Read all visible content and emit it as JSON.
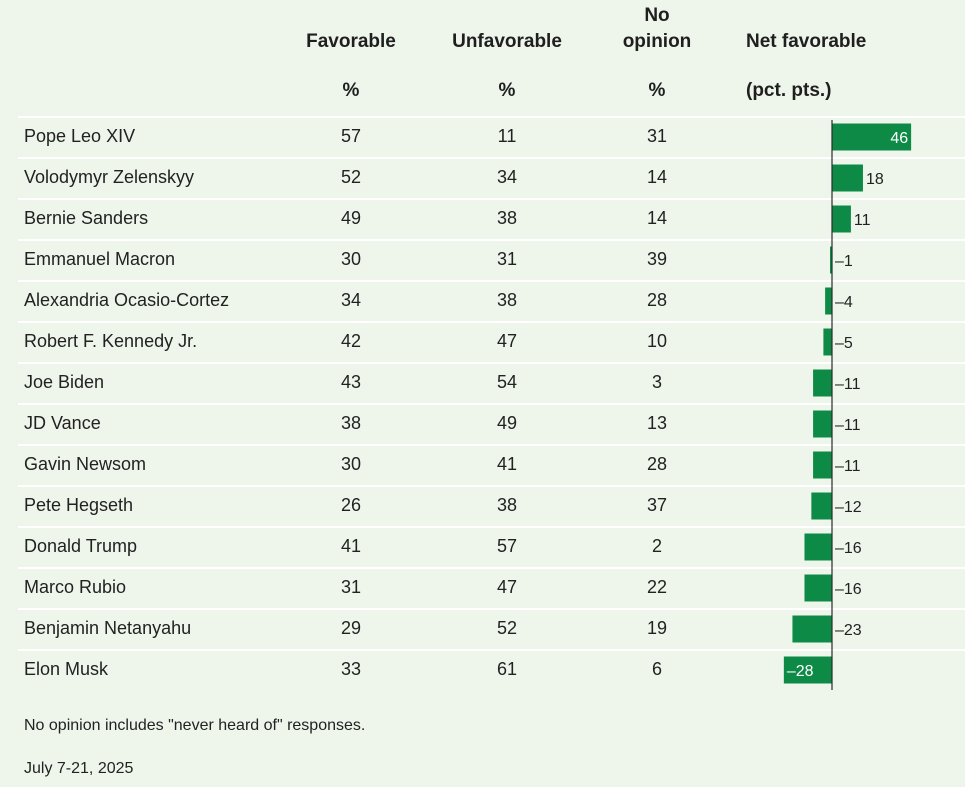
{
  "headers": {
    "favorable": "Favorable",
    "unfavorable": "Unfavorable",
    "no_opinion_line1": "No",
    "no_opinion_line2": "opinion",
    "net": "Net favorable",
    "pct": "%",
    "net_unit": "(pct. pts.)"
  },
  "rows": [
    {
      "name": "Pope Leo XIV",
      "favorable": "57",
      "unfavorable": "11",
      "no_opinion": "31"
    },
    {
      "name": "Volodymyr Zelenskyy",
      "favorable": "52",
      "unfavorable": "34",
      "no_opinion": "14"
    },
    {
      "name": "Bernie Sanders",
      "favorable": "49",
      "unfavorable": "38",
      "no_opinion": "14"
    },
    {
      "name": "Emmanuel Macron",
      "favorable": "30",
      "unfavorable": "31",
      "no_opinion": "39"
    },
    {
      "name": "Alexandria Ocasio-Cortez",
      "favorable": "34",
      "unfavorable": "38",
      "no_opinion": "28"
    },
    {
      "name": "Robert F. Kennedy Jr.",
      "favorable": "42",
      "unfavorable": "47",
      "no_opinion": "10"
    },
    {
      "name": "Joe Biden",
      "favorable": "43",
      "unfavorable": "54",
      "no_opinion": "3"
    },
    {
      "name": "JD Vance",
      "favorable": "38",
      "unfavorable": "49",
      "no_opinion": "13"
    },
    {
      "name": "Gavin Newsom",
      "favorable": "30",
      "unfavorable": "41",
      "no_opinion": "28"
    },
    {
      "name": "Pete Hegseth",
      "favorable": "26",
      "unfavorable": "38",
      "no_opinion": "37"
    },
    {
      "name": "Donald Trump",
      "favorable": "41",
      "unfavorable": "57",
      "no_opinion": "2"
    },
    {
      "name": "Marco Rubio",
      "favorable": "31",
      "unfavorable": "47",
      "no_opinion": "22"
    },
    {
      "name": "Benjamin Netanyahu",
      "favorable": "29",
      "unfavorable": "52",
      "no_opinion": "19"
    },
    {
      "name": "Elon Musk",
      "favorable": "33",
      "unfavorable": "61",
      "no_opinion": "6"
    }
  ],
  "chart_data": {
    "type": "bar",
    "orientation": "horizontal",
    "categories": [
      "Pope Leo XIV",
      "Volodymyr Zelenskyy",
      "Bernie Sanders",
      "Emmanuel Macron",
      "Alexandria Ocasio-Cortez",
      "Robert F. Kennedy Jr.",
      "Joe Biden",
      "JD Vance",
      "Gavin Newsom",
      "Pete Hegseth",
      "Donald Trump",
      "Marco Rubio",
      "Benjamin Netanyahu",
      "Elon Musk"
    ],
    "values": [
      46,
      18,
      11,
      -1,
      -4,
      -5,
      -11,
      -11,
      -11,
      -12,
      -16,
      -16,
      -23,
      -28
    ],
    "labels": [
      "46",
      "18",
      "11",
      "–1",
      "–4",
      "–5",
      "–11",
      "–11",
      "–11",
      "–12",
      "–16",
      "–16",
      "–23",
      "–28"
    ],
    "title": "Net favorable",
    "unit": "(pct. pts.)",
    "bar_color": "#0e8a47",
    "grid": false
  },
  "footer": {
    "note": "No opinion includes \"never heard of\" responses.",
    "date": "July 7-21, 2025"
  }
}
